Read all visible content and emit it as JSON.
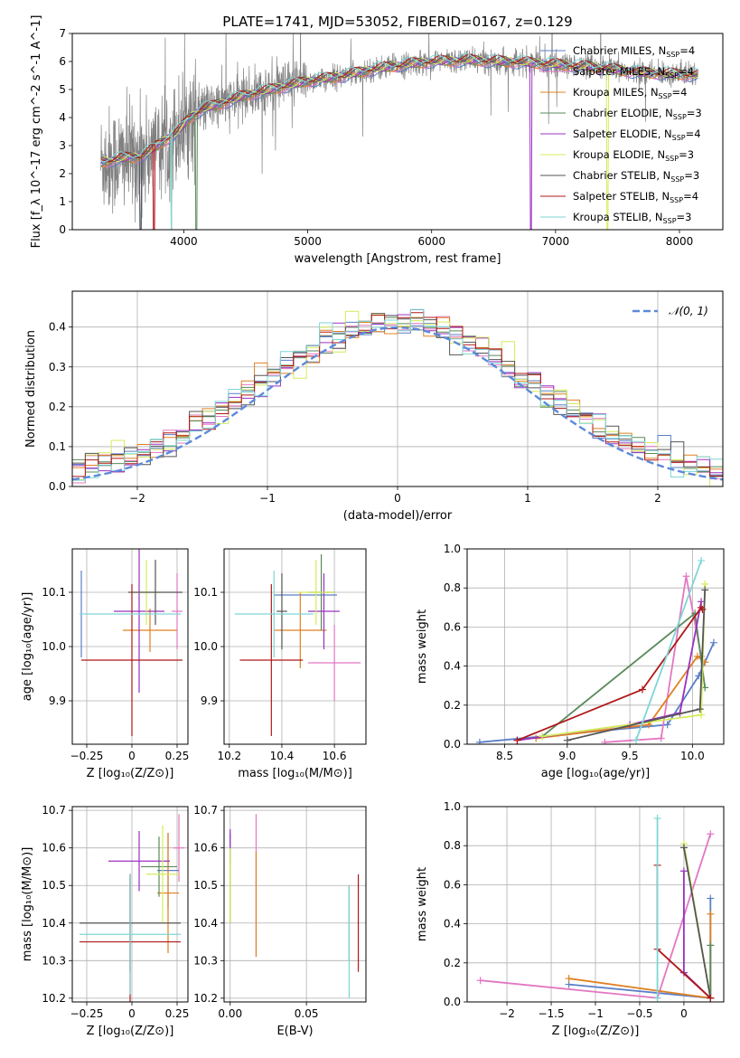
{
  "figure_title": "PLATE=1741, MJD=53052, FIBERID=0167, z=0.129",
  "models": [
    {
      "name": "Chabrier MILES",
      "nssp": "4",
      "color": "#5a7fc7"
    },
    {
      "name": "Salpeter MILES",
      "nssp": "4",
      "color": "#e377c2"
    },
    {
      "name": "Kroupa MILES",
      "nssp": "4",
      "color": "#e08020"
    },
    {
      "name": "Chabrier ELODIE",
      "nssp": "3",
      "color": "#5a8a5a"
    },
    {
      "name": "Salpeter ELODIE",
      "nssp": "4",
      "color": "#9b30c0"
    },
    {
      "name": "Kroupa ELODIE",
      "nssp": "3",
      "color": "#d4ec5a"
    },
    {
      "name": "Chabrier STELIB",
      "nssp": "3",
      "color": "#555555"
    },
    {
      "name": "Salpeter STELIB",
      "nssp": "4",
      "color": "#b01818"
    },
    {
      "name": "Kroupa STELIB",
      "nssp": "3",
      "color": "#7ed6d6"
    }
  ],
  "chart_data": [
    {
      "id": "spectrum",
      "type": "line",
      "xlabel": "wavelength [Angstrom, rest frame]",
      "ylabel": "Flux [f_λ 10^-17 erg cm^-2 s^-1 A^-1]",
      "xlim": [
        3100,
        8350
      ],
      "ylim": [
        0,
        7
      ],
      "xticks": [
        4000,
        5000,
        6000,
        7000,
        8000
      ],
      "yticks": [
        0,
        1,
        2,
        3,
        4,
        5,
        6,
        7
      ],
      "legend_position": "top-right",
      "data_color": "#808080",
      "continuum": {
        "x": [
          3330,
          3500,
          3650,
          3750,
          3850,
          3950,
          4050,
          4150,
          4300,
          4500,
          4800,
          5000,
          5300,
          5500,
          5800,
          6000,
          6300,
          6600,
          7000,
          7300,
          7700,
          8000,
          8150
        ],
        "y": [
          2.4,
          2.55,
          2.6,
          2.9,
          3.2,
          3.5,
          4.0,
          4.3,
          4.5,
          4.8,
          5.1,
          5.3,
          5.5,
          5.7,
          5.9,
          6.0,
          6.05,
          6.0,
          5.9,
          5.8,
          5.6,
          5.55,
          5.5
        ]
      },
      "model_dropouts_x": [
        3650,
        3760,
        3900,
        4100,
        6800,
        7420
      ]
    },
    {
      "id": "residuals",
      "type": "bar",
      "xlabel": "(data-model)/error",
      "ylabel": "Normed distribution",
      "xlim": [
        -2.5,
        2.5
      ],
      "ylim": [
        0,
        0.49
      ],
      "xticks": [
        -2,
        -1,
        0,
        1,
        2
      ],
      "yticks": [
        0.0,
        0.1,
        0.2,
        0.3,
        0.4
      ],
      "grid": true,
      "legend_position": "top-right",
      "reference": {
        "label": "𝒩(0, 1)",
        "mean": 0,
        "sigma": 1,
        "color": "#5b8ad9"
      },
      "bin_width": 0.1
    },
    {
      "id": "age_vs_Z",
      "type": "scatter",
      "xlabel": "Z [log10(Z/Z⊙)]",
      "ylabel": "age  [log10(age/yr)]",
      "xlim": [
        -0.33,
        0.31
      ],
      "ylim": [
        9.82,
        10.18
      ],
      "xticks": [
        -0.25,
        0.0,
        0.25
      ],
      "yticks": [
        9.9,
        10.0,
        10.1
      ],
      "grid": true,
      "points": [
        {
          "x": -0.28,
          "y": 10.06,
          "xerr": 0.0,
          "yerr": 0.08
        },
        {
          "x": 0.25,
          "y": 10.065,
          "xerr": 0.03,
          "yerr": 0.07
        },
        {
          "x": 0.1,
          "y": 10.03,
          "xerr": 0.15,
          "yerr": 0.04
        },
        {
          "x": -0.28,
          "y": 10.1,
          "xerr": 0.0,
          "yerr": 0.0
        },
        {
          "x": 0.04,
          "y": 10.065,
          "xerr": 0.14,
          "yerr": 0.15
        },
        {
          "x": 0.08,
          "y": 10.1,
          "xerr": 0.08,
          "yerr": 0.06
        },
        {
          "x": 0.13,
          "y": 10.1,
          "xerr": 0.15,
          "yerr": 0.06
        },
        {
          "x": 0.0,
          "y": 9.975,
          "xerr": 0.28,
          "yerr": 0.14
        },
        {
          "x": -0.01,
          "y": 10.06,
          "xerr": 0.28,
          "yerr": 0.0
        }
      ]
    },
    {
      "id": "age_vs_mass",
      "type": "scatter",
      "xlabel": "mass [log10(M/M⊙)]",
      "ylabel": "",
      "xlim": [
        10.18,
        10.72
      ],
      "ylim": [
        9.82,
        10.18
      ],
      "xticks": [
        10.2,
        10.4,
        10.6
      ],
      "yticks": [
        9.9,
        10.0,
        10.1
      ],
      "grid": true,
      "points": [
        {
          "x": 10.49,
          "y": 10.095,
          "xerr": 0.12,
          "yerr": 0.0
        },
        {
          "x": 10.6,
          "y": 9.97,
          "xerr": 0.1,
          "yerr": 0.07
        },
        {
          "x": 10.47,
          "y": 10.03,
          "xerr": 0.1,
          "yerr": 0.07
        },
        {
          "x": 10.55,
          "y": 10.1,
          "xerr": 0.05,
          "yerr": 0.07
        },
        {
          "x": 10.56,
          "y": 10.065,
          "xerr": 0.06,
          "yerr": 0.07
        },
        {
          "x": 10.53,
          "y": 10.1,
          "xerr": 0.07,
          "yerr": 0.06
        },
        {
          "x": 10.4,
          "y": 10.065,
          "xerr": 0.02,
          "yerr": 0.07
        },
        {
          "x": 10.36,
          "y": 9.975,
          "xerr": 0.12,
          "yerr": 0.14
        },
        {
          "x": 10.37,
          "y": 10.06,
          "xerr": 0.15,
          "yerr": 0.08
        }
      ]
    },
    {
      "id": "massweight_vs_age",
      "type": "line",
      "xlabel": "age  [log10(age/yr)]",
      "ylabel": "mass weight",
      "xlim": [
        8.2,
        10.25
      ],
      "ylim": [
        0,
        1
      ],
      "xticks": [
        8.5,
        9.0,
        9.5,
        10.0
      ],
      "yticks": [
        0.0,
        0.2,
        0.4,
        0.6,
        0.8,
        1.0
      ],
      "grid": true,
      "series": [
        {
          "x": [
            8.3,
            9.8,
            10.05,
            10.17
          ],
          "y": [
            0.01,
            0.1,
            0.35,
            0.52
          ]
        },
        {
          "x": [
            9.3,
            9.75,
            9.95,
            10.07
          ],
          "y": [
            0.01,
            0.03,
            0.86,
            0.45
          ]
        },
        {
          "x": [
            8.75,
            9.65,
            10.04,
            10.1
          ],
          "y": [
            0.03,
            0.1,
            0.45,
            0.42
          ]
        },
        {
          "x": [
            8.8,
            10.02,
            10.1
          ],
          "y": [
            0.04,
            0.67,
            0.29
          ]
        },
        {
          "x": [
            8.6,
            9.5,
            9.9,
            10.07
          ],
          "y": [
            0.02,
            0.1,
            0.16,
            0.73
          ]
        },
        {
          "x": [
            8.8,
            10.07,
            10.1
          ],
          "y": [
            0.04,
            0.15,
            0.82
          ]
        },
        {
          "x": [
            9.0,
            10.06,
            10.1
          ],
          "y": [
            0.02,
            0.18,
            0.79
          ]
        },
        {
          "x": [
            8.6,
            9.6,
            10.07,
            10.08
          ],
          "y": [
            0.02,
            0.28,
            0.7,
            0.69
          ]
        },
        {
          "x": [
            9.55,
            10.07
          ],
          "y": [
            0.02,
            0.94
          ]
        }
      ]
    },
    {
      "id": "mass_vs_Z",
      "type": "scatter",
      "xlabel": "Z [log10(Z/Z⊙)]",
      "ylabel": "mass [log10(M/M⊙)]",
      "xlim": [
        -0.33,
        0.31
      ],
      "ylim": [
        10.19,
        10.71
      ],
      "xticks": [
        -0.25,
        0.0,
        0.25
      ],
      "yticks": [
        10.2,
        10.3,
        10.4,
        10.5,
        10.6,
        10.7
      ],
      "grid": true,
      "points": [
        {
          "x": 0.2,
          "y": 10.54,
          "xerr": 0.06,
          "yerr": 0.1
        },
        {
          "x": 0.26,
          "y": 10.6,
          "xerr": 0.03,
          "yerr": 0.09
        },
        {
          "x": 0.2,
          "y": 10.48,
          "xerr": 0.06,
          "yerr": 0.16
        },
        {
          "x": 0.15,
          "y": 10.55,
          "xerr": 0.1,
          "yerr": 0.08
        },
        {
          "x": 0.04,
          "y": 10.565,
          "xerr": 0.17,
          "yerr": 0.08
        },
        {
          "x": 0.17,
          "y": 10.53,
          "xerr": 0.09,
          "yerr": 0.13
        },
        {
          "x": -0.01,
          "y": 10.4,
          "xerr": 0.28,
          "yerr": 0.13
        },
        {
          "x": -0.01,
          "y": 10.35,
          "xerr": 0.28,
          "yerr": 0.18
        },
        {
          "x": -0.01,
          "y": 10.37,
          "xerr": 0.28,
          "yerr": 0.16
        }
      ]
    },
    {
      "id": "mass_vs_ebv",
      "type": "scatter",
      "xlabel": "E(B-V)",
      "ylabel": "",
      "xlim": [
        -0.004,
        0.089
      ],
      "ylim": [
        10.19,
        10.71
      ],
      "xticks": [
        0.0,
        0.05
      ],
      "yticks": [
        10.2,
        10.3,
        10.4,
        10.5,
        10.6,
        10.7
      ],
      "grid": true,
      "points": [
        {
          "x": 0.0,
          "y": 10.6,
          "xerr": 0.0,
          "yerr": 0.04
        },
        {
          "x": 0.017,
          "y": 10.5,
          "xerr": 0.0,
          "yerr": 0.19
        },
        {
          "x": 0.017,
          "y": 10.45,
          "xerr": 0.0,
          "yerr": 0.14
        },
        {
          "x": 0.0,
          "y": 10.5,
          "xerr": 0.0,
          "yerr": 0.1
        },
        {
          "x": 0.0,
          "y": 10.62,
          "xerr": 0.0,
          "yerr": 0.03
        },
        {
          "x": 0.0,
          "y": 10.5,
          "xerr": 0.0,
          "yerr": 0.1
        },
        {
          "x": 0.078,
          "y": 10.4,
          "xerr": 0.0,
          "yerr": 0.1
        },
        {
          "x": 0.084,
          "y": 10.4,
          "xerr": 0.0,
          "yerr": 0.13
        },
        {
          "x": 0.078,
          "y": 10.35,
          "xerr": 0.0,
          "yerr": 0.15
        }
      ]
    },
    {
      "id": "massweight_vs_Z",
      "type": "line",
      "xlabel": "Z [log10(Z/Z⊙)]",
      "ylabel": "mass weight",
      "xlim": [
        -2.45,
        0.45
      ],
      "ylim": [
        0,
        1
      ],
      "xticks": [
        -2.0,
        -1.5,
        -1.0,
        -0.5,
        0.0
      ],
      "yticks": [
        0.0,
        0.2,
        0.4,
        0.6,
        0.8,
        1.0
      ],
      "grid": true,
      "series": [
        {
          "x": [
            -1.3,
            0.3,
            0.3
          ],
          "y": [
            0.09,
            0.02,
            0.53
          ]
        },
        {
          "x": [
            -2.3,
            -0.3,
            0.3
          ],
          "y": [
            0.11,
            0.02,
            0.86
          ]
        },
        {
          "x": [
            -1.3,
            0.3,
            0.3
          ],
          "y": [
            0.12,
            0.02,
            0.45
          ]
        },
        {
          "x": [
            0.3,
            0.3
          ],
          "y": [
            0.02,
            0.29
          ]
        },
        {
          "x": [
            0.0,
            0.0,
            0.3
          ],
          "y": [
            0.67,
            0.15,
            0.02
          ]
        },
        {
          "x": [
            0.0,
            0.3
          ],
          "y": [
            0.81,
            0.02
          ]
        },
        {
          "x": [
            0.3,
            0.0
          ],
          "y": [
            0.02,
            0.79
          ]
        },
        {
          "x": [
            -0.3,
            -0.3,
            0.3
          ],
          "y": [
            0.7,
            0.27,
            0.02
          ]
        },
        {
          "x": [
            -0.3,
            -0.3
          ],
          "y": [
            0.02,
            0.94
          ]
        }
      ]
    }
  ]
}
